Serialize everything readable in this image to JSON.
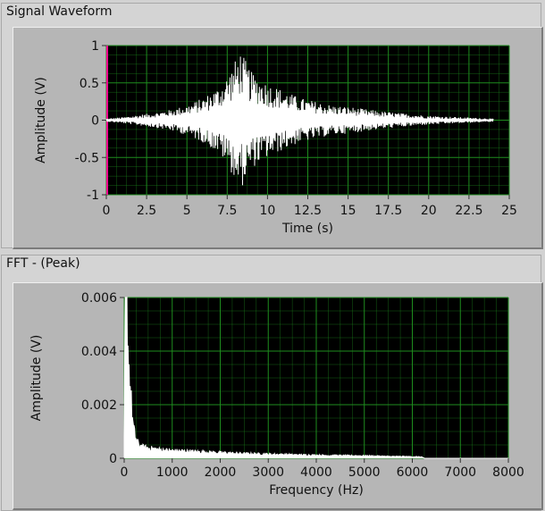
{
  "panels": {
    "waveform_title": "Signal Waveform",
    "fft_title": "FFT - (Peak)"
  },
  "colors": {
    "plot_bg": "#000000",
    "grid": "#1e8c1e",
    "trace": "#ffffff",
    "cursor": "#ff0090"
  },
  "chart_data": [
    {
      "type": "line",
      "title": "Signal Waveform",
      "xlabel": "Time (s)",
      "ylabel": "Amplitude (V)",
      "xlim": [
        0,
        25
      ],
      "ylim": [
        -1,
        1
      ],
      "x_ticks": [
        "0",
        "2.5",
        "5",
        "7.5",
        "10",
        "12.5",
        "15",
        "17.5",
        "20",
        "22.5",
        "25"
      ],
      "y_ticks": [
        "1",
        "0.5",
        "0",
        "-0.5",
        "-1"
      ],
      "grid": true,
      "series": [
        {
          "envelope": {
            "x": [
              0,
              1,
              2,
              3,
              4,
              5,
              6,
              7,
              7.5,
              8,
              8.3,
              8.6,
              9,
              10,
              11,
              12,
              13,
              14,
              15,
              16,
              17,
              18,
              19,
              20,
              21,
              22,
              23,
              24
            ],
            "upper": [
              0.02,
              0.04,
              0.07,
              0.1,
              0.14,
              0.2,
              0.3,
              0.45,
              0.6,
              0.8,
              0.95,
              0.82,
              0.65,
              0.5,
              0.4,
              0.3,
              0.25,
              0.2,
              0.18,
              0.15,
              0.12,
              0.1,
              0.08,
              0.06,
              0.05,
              0.04,
              0.03,
              0.02
            ],
            "lower": [
              -0.02,
              -0.04,
              -0.07,
              -0.1,
              -0.14,
              -0.2,
              -0.3,
              -0.45,
              -0.6,
              -0.8,
              -0.95,
              -0.82,
              -0.65,
              -0.5,
              -0.4,
              -0.3,
              -0.25,
              -0.2,
              -0.18,
              -0.15,
              -0.12,
              -0.1,
              -0.08,
              -0.06,
              -0.05,
              -0.04,
              -0.03,
              -0.02
            ]
          }
        }
      ]
    },
    {
      "type": "line",
      "title": "FFT - (Peak)",
      "xlabel": "Frequency (Hz)",
      "ylabel": "Amplitude (V)",
      "xlim": [
        0,
        8000
      ],
      "ylim": [
        0,
        0.006
      ],
      "x_ticks": [
        "0",
        "1000",
        "2000",
        "3000",
        "4000",
        "5000",
        "6000",
        "7000",
        "8000"
      ],
      "y_ticks": [
        "0.006",
        "0.004",
        "0.002",
        "0"
      ],
      "grid": true,
      "series": [
        {
          "x": [
            0,
            20,
            50,
            80,
            110,
            140,
            170,
            200,
            250,
            300,
            400,
            600,
            800,
            1000,
            1500,
            2000,
            2500,
            3000,
            3500,
            4000,
            4500,
            5000,
            5500,
            6000,
            6200,
            6250,
            8000
          ],
          "y": [
            0.0006,
            0.006,
            0.0055,
            0.0042,
            0.003,
            0.0022,
            0.0015,
            0.001,
            0.0007,
            0.0005,
            0.0004,
            0.00035,
            0.0003,
            0.00028,
            0.00024,
            0.0002,
            0.00017,
            0.00015,
            0.00013,
            0.00011,
            0.0001,
            9e-05,
            7e-05,
            6e-05,
            5e-05,
            0,
            0
          ]
        }
      ]
    }
  ]
}
